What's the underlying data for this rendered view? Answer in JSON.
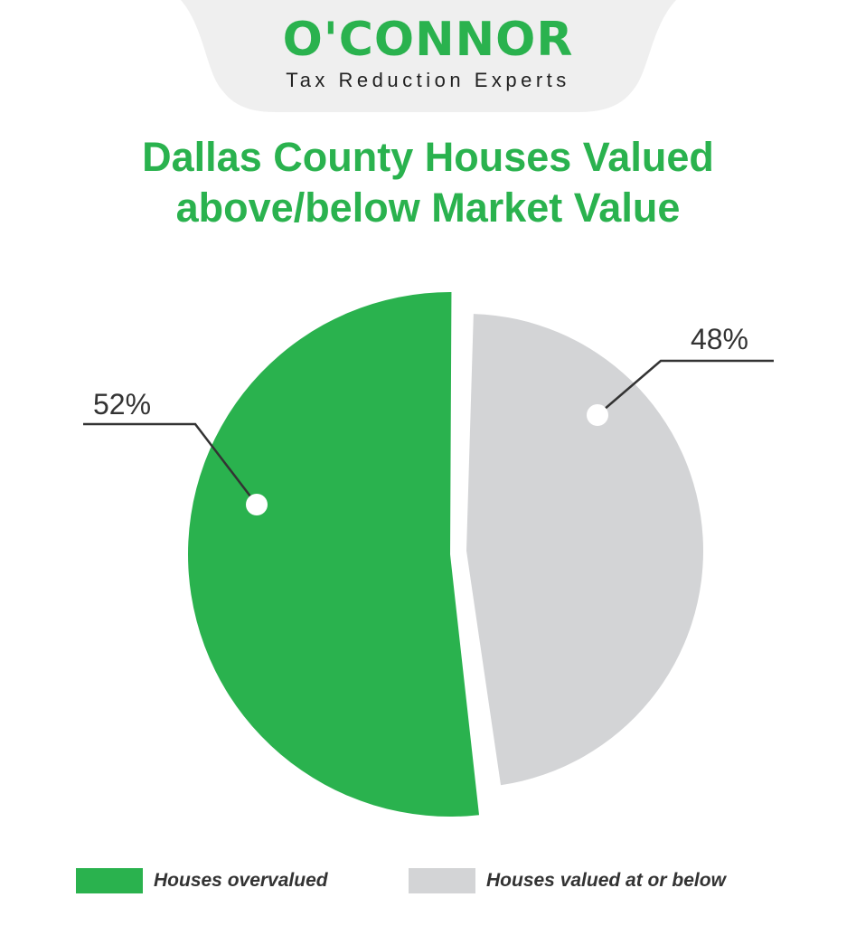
{
  "logo": {
    "wordmark": "O'CONNOR",
    "tagline": "Tax Reduction Experts"
  },
  "colors": {
    "brand_green": "#2ab24e",
    "slice_gray": "#d3d4d6",
    "header_bg": "#efefef",
    "text_dark": "#333333"
  },
  "chart_data": {
    "type": "pie",
    "title": "Dallas County Houses Valued above/below Market Value",
    "title_lines": [
      "Dallas County Houses Valued",
      "above/below Market Value"
    ],
    "slices": [
      {
        "label": "Houses overvalued",
        "value": 52,
        "display": "52%",
        "color": "#2ab24e"
      },
      {
        "label": "Houses valued at or below",
        "value": 48,
        "display": "48%",
        "color": "#d3d4d6"
      }
    ],
    "legend_position": "bottom"
  }
}
